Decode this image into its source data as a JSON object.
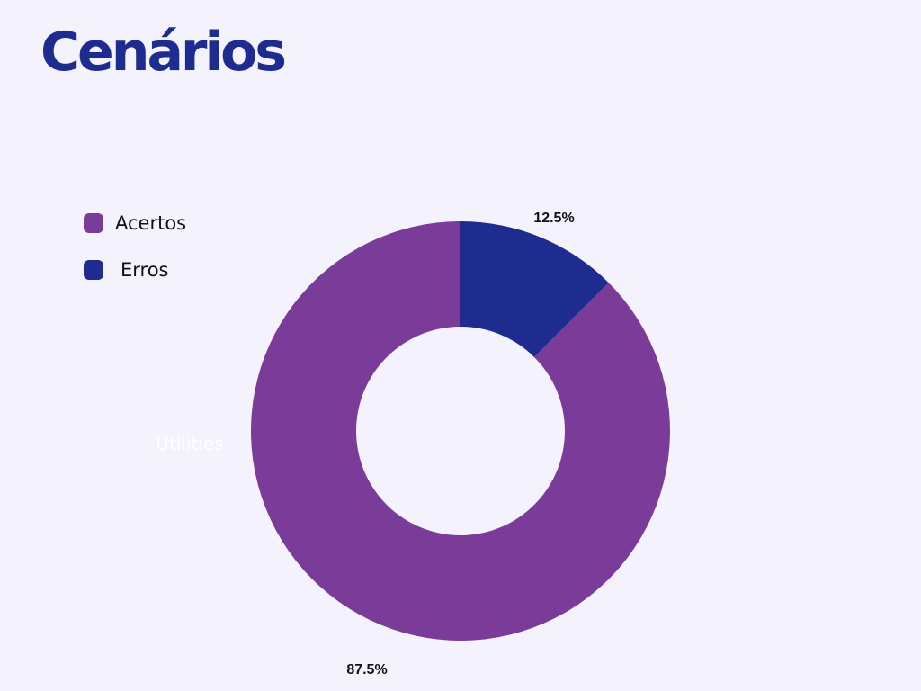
{
  "page": {
    "title": "Cenários",
    "title_color": "#1e2b8f",
    "background": "#f3f2fd"
  },
  "legend": [
    {
      "label": "Acertos",
      "color": "#7a3b99"
    },
    {
      "label": "Erros",
      "color": "#1e2b8f"
    }
  ],
  "chart_data": {
    "type": "pie",
    "donut": true,
    "start_angle_deg": 0,
    "direction": "clockwise",
    "slices": [
      {
        "name": "Erros",
        "value": 12.5,
        "label": "12.5%",
        "color": "#1e2b8f"
      },
      {
        "name": "Acertos",
        "value": 87.5,
        "label": "87.5%",
        "color": "#7a3b99"
      }
    ],
    "annotations": [
      "Utilities"
    ],
    "legend_position": "top-left"
  }
}
